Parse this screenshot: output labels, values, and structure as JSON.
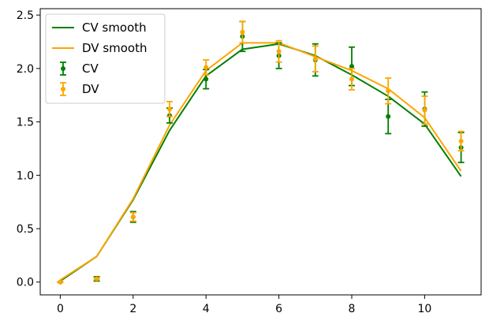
{
  "chart_data": {
    "type": "line",
    "title": "",
    "xlabel": "",
    "ylabel": "",
    "xlim": [
      -0.55,
      11.55
    ],
    "ylim": [
      -0.12,
      2.56
    ],
    "x_ticks": [
      0,
      2,
      4,
      6,
      8,
      10
    ],
    "y_ticks": [
      0.0,
      0.5,
      1.0,
      1.5,
      2.0,
      2.5
    ],
    "x_tick_labels": [
      "0",
      "2",
      "4",
      "6",
      "8",
      "10"
    ],
    "y_tick_labels": [
      "0.0",
      "0.5",
      "1.0",
      "1.5",
      "2.0",
      "2.5"
    ],
    "grid": false,
    "legend_position": "top-left",
    "x": [
      0,
      1,
      2,
      3,
      4,
      5,
      6,
      7,
      8,
      9,
      10,
      11
    ],
    "series": [
      {
        "name": "CV smooth",
        "kind": "line",
        "color": "#008000",
        "values": [
          0.01,
          0.24,
          0.77,
          1.42,
          1.93,
          2.18,
          2.23,
          2.12,
          1.94,
          1.74,
          1.48,
          0.99
        ]
      },
      {
        "name": "DV smooth",
        "kind": "line",
        "color": "#ffa500",
        "values": [
          0.02,
          0.24,
          0.78,
          1.47,
          1.98,
          2.24,
          2.24,
          2.11,
          1.98,
          1.81,
          1.54,
          1.04
        ]
      },
      {
        "name": "CV",
        "kind": "errorbar",
        "color": "#008000",
        "values": [
          0.0,
          0.03,
          0.61,
          1.56,
          1.9,
          2.3,
          2.12,
          2.08,
          2.02,
          1.55,
          1.62,
          1.26
        ],
        "errors": [
          0.0,
          0.02,
          0.05,
          0.07,
          0.09,
          0.14,
          0.12,
          0.15,
          0.18,
          0.16,
          0.16,
          0.14
        ]
      },
      {
        "name": "DV",
        "kind": "errorbar",
        "color": "#ffa500",
        "values": [
          0.0,
          0.03,
          0.61,
          1.62,
          2.01,
          2.34,
          2.16,
          2.09,
          1.9,
          1.79,
          1.61,
          1.32
        ],
        "errors": [
          0.0,
          0.01,
          0.04,
          0.07,
          0.07,
          0.1,
          0.1,
          0.12,
          0.1,
          0.12,
          0.13,
          0.09
        ]
      }
    ]
  }
}
